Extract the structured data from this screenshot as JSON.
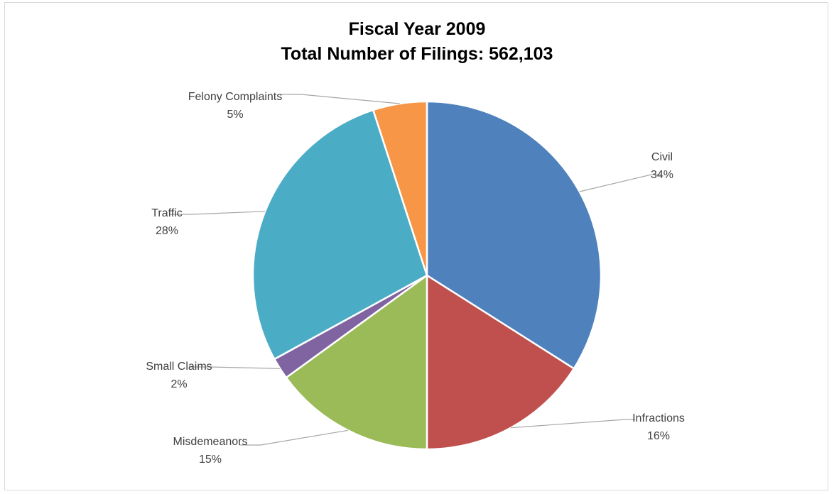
{
  "chart_data": {
    "type": "pie",
    "title": "Fiscal Year 2009",
    "subtitle": "Total Number of Filings: 562,103",
    "categories": [
      "Civil",
      "Infractions",
      "Misdemeanors",
      "Small Claims",
      "Traffic",
      "Felony Complaints"
    ],
    "values": [
      34,
      16,
      15,
      2,
      28,
      5
    ],
    "labels": [
      "34%",
      "16%",
      "15%",
      "2%",
      "28%",
      "5%"
    ],
    "colors": [
      "#4f81bd",
      "#c0504d",
      "#9bbb59",
      "#8064a2",
      "#4bacc6",
      "#f79646"
    ],
    "legend": "none"
  }
}
